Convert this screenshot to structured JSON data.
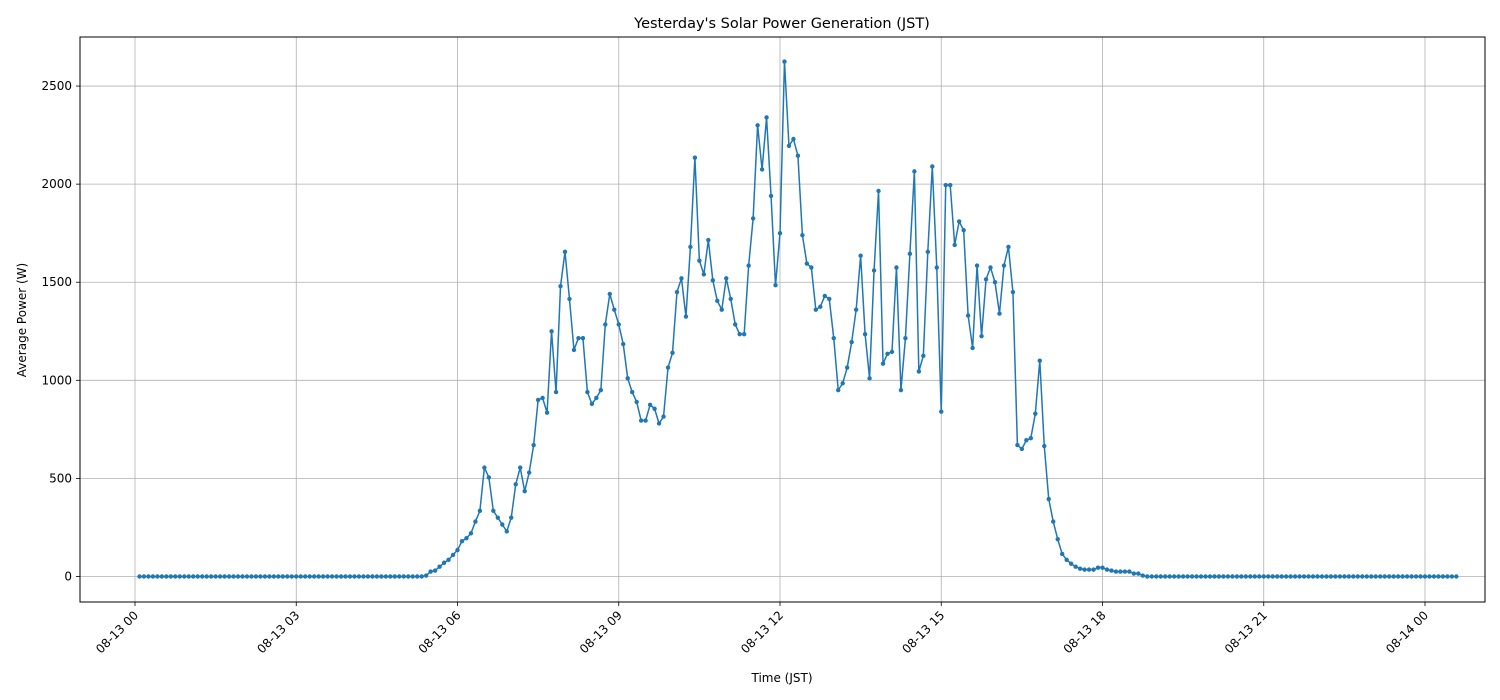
{
  "chart_data": {
    "type": "line",
    "title": "Yesterday's Solar Power Generation (JST)",
    "xlabel": "Time (JST)",
    "ylabel": "Average Power (W)",
    "x_range": [
      "08-13 00:00",
      "08-14 00:00"
    ],
    "ylim": [
      -130,
      2750
    ],
    "x_ticks": [
      {
        "hour": 0,
        "label": "08-13 00"
      },
      {
        "hour": 3,
        "label": "08-13 03"
      },
      {
        "hour": 6,
        "label": "08-13 06"
      },
      {
        "hour": 9,
        "label": "08-13 09"
      },
      {
        "hour": 12,
        "label": "08-13 12"
      },
      {
        "hour": 15,
        "label": "08-13 15"
      },
      {
        "hour": 18,
        "label": "08-13 18"
      },
      {
        "hour": 21,
        "label": "08-13 21"
      },
      {
        "hour": 24,
        "label": "08-14 00"
      }
    ],
    "y_ticks": [
      0,
      500,
      1000,
      1500,
      2000,
      2500
    ],
    "grid": true,
    "line_color": "#1f77b4",
    "marker": "circle",
    "interval_minutes": 5,
    "series": [
      {
        "name": "",
        "x_start": "08-13 00:05",
        "values": [
          0,
          0,
          0,
          0,
          0,
          0,
          0,
          0,
          0,
          0,
          0,
          0,
          0,
          0,
          0,
          0,
          0,
          0,
          0,
          0,
          0,
          0,
          0,
          0,
          0,
          0,
          0,
          0,
          0,
          0,
          0,
          0,
          0,
          0,
          0,
          0,
          0,
          0,
          0,
          0,
          0,
          0,
          0,
          0,
          0,
          0,
          0,
          0,
          0,
          0,
          0,
          0,
          0,
          0,
          0,
          0,
          0,
          0,
          0,
          0,
          0,
          0,
          0,
          0,
          5,
          25,
          30,
          50,
          70,
          85,
          110,
          135,
          180,
          195,
          220,
          280,
          335,
          555,
          505,
          335,
          300,
          265,
          230,
          300,
          470,
          555,
          435,
          530,
          670,
          900,
          910,
          835,
          1250,
          940,
          1480,
          1655,
          1415,
          1155,
          1215,
          1215,
          940,
          880,
          910,
          950,
          1285,
          1440,
          1360,
          1285,
          1185,
          1010,
          940,
          890,
          795,
          795,
          875,
          855,
          780,
          815,
          1065,
          1140,
          1450,
          1520,
          1325,
          1680,
          2135,
          1610,
          1540,
          1715,
          1510,
          1405,
          1360,
          1520,
          1415,
          1285,
          1235,
          1235,
          1585,
          1825,
          2300,
          2075,
          2340,
          1940,
          1485,
          1750,
          2625,
          2195,
          2230,
          2145,
          1740,
          1595,
          1575,
          1360,
          1375,
          1430,
          1415,
          1215,
          950,
          985,
          1065,
          1195,
          1360,
          1635,
          1235,
          1010,
          1560,
          1965,
          1085,
          1135,
          1145,
          1575,
          950,
          1215,
          1645,
          2065,
          1045,
          1125,
          1655,
          2090,
          1575,
          840,
          1995,
          1995,
          1690,
          1810,
          1765,
          1330,
          1165,
          1585,
          1225,
          1515,
          1575,
          1500,
          1340,
          1585,
          1680,
          1450,
          670,
          650,
          695,
          705,
          830,
          1100,
          665,
          395,
          280,
          190,
          115,
          85,
          65,
          50,
          40,
          35,
          35,
          35,
          45,
          45,
          35,
          30,
          25,
          25,
          25,
          25,
          15,
          15,
          5,
          0,
          0,
          0,
          0,
          0,
          0,
          0,
          0,
          0,
          0,
          0,
          0,
          0,
          0,
          0,
          0,
          0,
          0,
          0,
          0,
          0,
          0,
          0,
          0,
          0,
          0,
          0,
          0,
          0,
          0,
          0,
          0,
          0,
          0,
          0,
          0,
          0,
          0,
          0,
          0,
          0,
          0,
          0,
          0,
          0,
          0,
          0,
          0,
          0,
          0,
          0,
          0,
          0,
          0,
          0,
          0,
          0,
          0,
          0,
          0,
          0,
          0,
          0,
          0,
          0,
          0,
          0,
          0,
          0,
          0
        ]
      }
    ]
  }
}
